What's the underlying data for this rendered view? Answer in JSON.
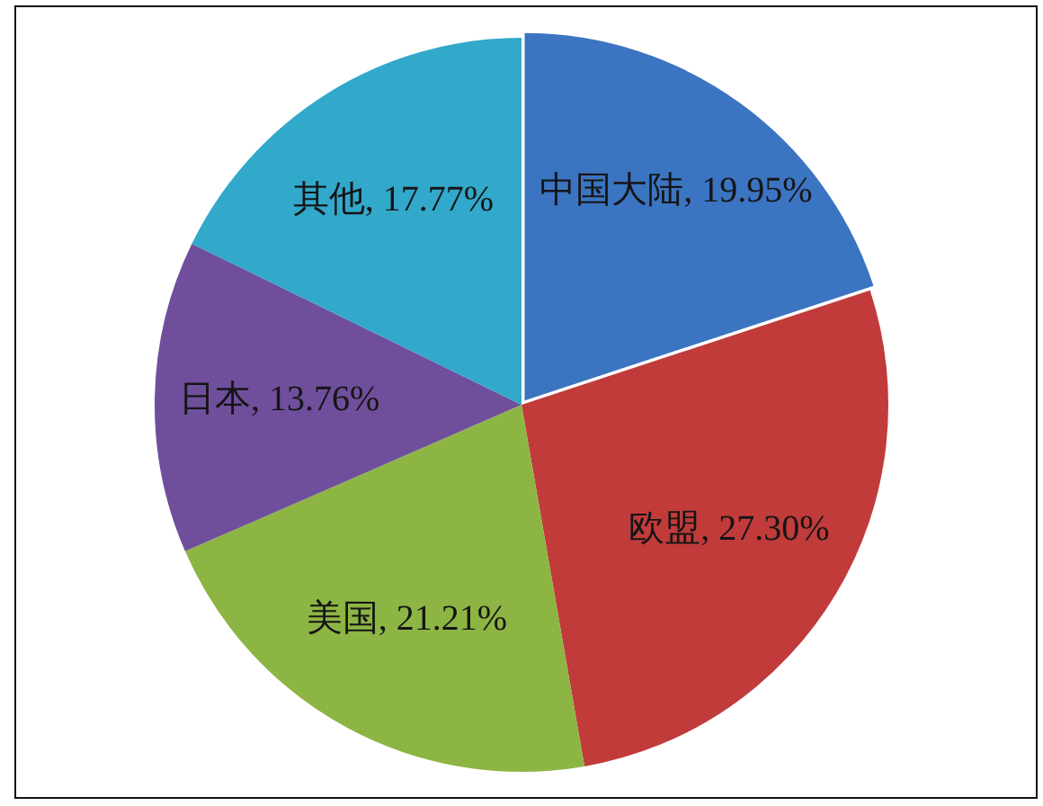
{
  "chart_data": {
    "type": "pie",
    "categories": [
      "中国大陆",
      "欧盟",
      "美国",
      "日本",
      "其他"
    ],
    "values": [
      19.95,
      27.3,
      21.21,
      13.76,
      17.77
    ],
    "value_labels": [
      "19.95%",
      "27.30%",
      "21.21%",
      "13.76%",
      "17.77%"
    ],
    "colors": [
      "#3b74c1",
      "#c13b3b",
      "#8db544",
      "#6f4f9c",
      "#32a8ca"
    ]
  }
}
